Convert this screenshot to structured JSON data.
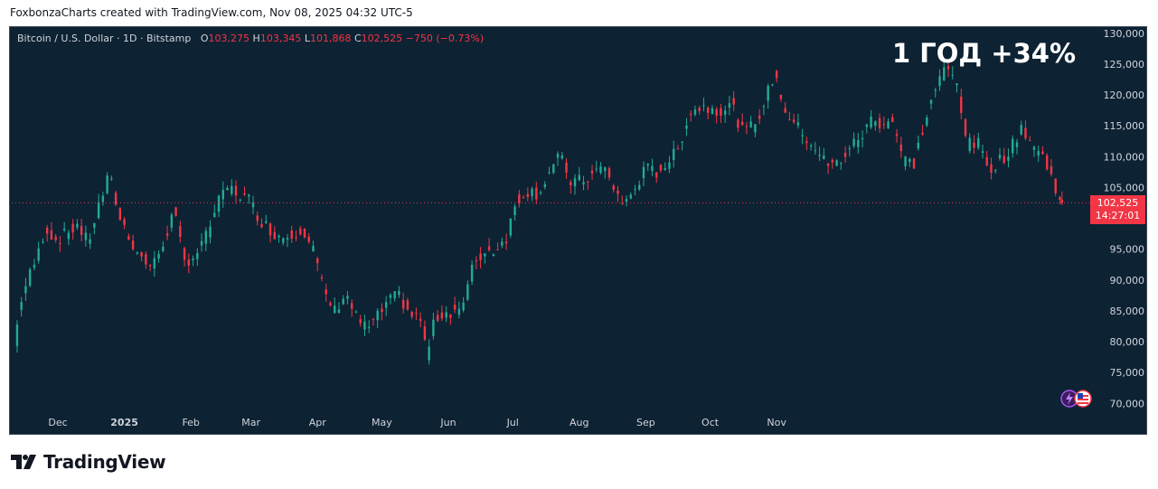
{
  "caption": "FoxbonzaCharts created with TradingView.com, Nov 08, 2025 04:32 UTC-5",
  "legend": {
    "symbol": "Bitcoin / U.S. Dollar · 1D · Bitstamp",
    "o_label": "O",
    "o": "103,275",
    "h_label": "H",
    "h": "103,345",
    "l_label": "L",
    "l": "101,868",
    "c_label": "C",
    "c": "102,525",
    "change": "−750 (−0.73%)"
  },
  "headline": "1 ГОД +34%",
  "last_price": {
    "price": "102,525",
    "countdown": "14:27:01"
  },
  "footer": {
    "brand": "TradingView"
  },
  "colors": {
    "up": "#22ab94",
    "down": "#f23645",
    "background": "#0d2233",
    "axis_text": "#d1d4dc"
  },
  "chart_data": {
    "type": "candlestick",
    "interval": "1D",
    "y_ticks": [
      130000,
      125000,
      120000,
      115000,
      110000,
      105000,
      100000,
      95000,
      90000,
      85000,
      80000,
      75000,
      70000
    ],
    "y_tick_labels": [
      "130,000",
      "125,000",
      "120,000",
      "115,000",
      "110,000",
      "105,000",
      "100,000",
      "95,000",
      "90,000",
      "85,000",
      "80,000",
      "75,000",
      "70,000"
    ],
    "ylim": [
      68000,
      131000
    ],
    "x_labels": [
      "Dec",
      "2025",
      "Feb",
      "Mar",
      "Apr",
      "May",
      "Jun",
      "Jul",
      "Aug",
      "Sep",
      "Oct",
      "Nov"
    ],
    "last_close": 102525,
    "grid": false,
    "closes": [
      [
        0,
        76000
      ],
      [
        3,
        86000
      ],
      [
        7,
        90000
      ],
      [
        12,
        94500
      ],
      [
        15,
        98500
      ],
      [
        20,
        96500
      ],
      [
        25,
        97500
      ],
      [
        30,
        99000
      ],
      [
        35,
        96000
      ],
      [
        40,
        102000
      ],
      [
        45,
        107000
      ],
      [
        50,
        100000
      ],
      [
        55,
        96500
      ],
      [
        60,
        93500
      ],
      [
        65,
        92000
      ],
      [
        70,
        96000
      ],
      [
        75,
        101000
      ],
      [
        80,
        93000
      ],
      [
        85,
        94000
      ],
      [
        90,
        97000
      ],
      [
        95,
        102000
      ],
      [
        100,
        105000
      ],
      [
        105,
        104000
      ],
      [
        110,
        103000
      ],
      [
        115,
        100000
      ],
      [
        120,
        98000
      ],
      [
        125,
        97000
      ],
      [
        130,
        97500
      ],
      [
        135,
        98500
      ],
      [
        140,
        95000
      ],
      [
        145,
        88000
      ],
      [
        150,
        85000
      ],
      [
        155,
        88000
      ],
      [
        160,
        84000
      ],
      [
        165,
        82000
      ],
      [
        170,
        84000
      ],
      [
        175,
        86500
      ],
      [
        180,
        87500
      ],
      [
        185,
        84500
      ],
      [
        190,
        83500
      ],
      [
        193,
        78000
      ],
      [
        197,
        84000
      ],
      [
        200,
        84500
      ],
      [
        205,
        85000
      ],
      [
        210,
        86000
      ],
      [
        215,
        93000
      ],
      [
        220,
        94500
      ],
      [
        225,
        95000
      ],
      [
        230,
        97000
      ],
      [
        235,
        103000
      ],
      [
        240,
        104500
      ],
      [
        245,
        104000
      ],
      [
        250,
        107500
      ],
      [
        255,
        110000
      ],
      [
        260,
        106000
      ],
      [
        265,
        106000
      ],
      [
        270,
        107000
      ],
      [
        275,
        108500
      ],
      [
        280,
        105000
      ],
      [
        285,
        102000
      ],
      [
        290,
        105000
      ],
      [
        295,
        108000
      ],
      [
        300,
        107500
      ],
      [
        305,
        109000
      ],
      [
        310,
        111000
      ],
      [
        315,
        117000
      ],
      [
        320,
        118000
      ],
      [
        325,
        118000
      ],
      [
        330,
        117500
      ],
      [
        335,
        118500
      ],
      [
        340,
        114000
      ],
      [
        345,
        115000
      ],
      [
        350,
        118500
      ],
      [
        355,
        123500
      ],
      [
        360,
        117500
      ],
      [
        365,
        115000
      ],
      [
        370,
        113000
      ],
      [
        375,
        111000
      ],
      [
        380,
        108500
      ],
      [
        385,
        109000
      ],
      [
        390,
        111500
      ],
      [
        395,
        113000
      ],
      [
        400,
        116000
      ],
      [
        405,
        115500
      ],
      [
        410,
        116000
      ],
      [
        415,
        109500
      ],
      [
        420,
        109000
      ],
      [
        425,
        115500
      ],
      [
        430,
        121000
      ],
      [
        435,
        124500
      ],
      [
        440,
        122000
      ],
      [
        445,
        112000
      ],
      [
        450,
        112000
      ],
      [
        455,
        108000
      ],
      [
        460,
        109500
      ],
      [
        465,
        111000
      ],
      [
        470,
        115000
      ],
      [
        475,
        112000
      ],
      [
        480,
        110000
      ],
      [
        485,
        106000
      ],
      [
        489,
        102525
      ]
    ]
  }
}
